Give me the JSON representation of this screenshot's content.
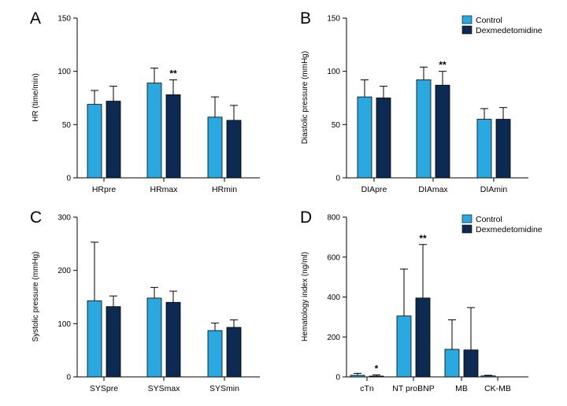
{
  "colors": {
    "control": "#29a9e0",
    "dexmedetomidine": "#0d2b52"
  },
  "legend": [
    "Control",
    "Dexmedetomidine"
  ],
  "chart_data": [
    {
      "type": "bar",
      "panel": "A",
      "ylabel": "HR (time/min)",
      "ylim": [
        0,
        150
      ],
      "yticks": [
        0,
        50,
        100,
        150
      ],
      "categories": [
        "HRpre",
        "HRmax",
        "HRmin"
      ],
      "series": [
        {
          "name": "Control",
          "values": [
            69,
            89,
            57
          ],
          "errors": [
            13,
            14,
            19
          ]
        },
        {
          "name": "Dexmedetomidine",
          "values": [
            72,
            78,
            54
          ],
          "errors": [
            14,
            14,
            14
          ]
        }
      ],
      "annotations": [
        {
          "category": "HRmax",
          "series": "Dexmedetomidine",
          "text": "**"
        }
      ],
      "legend_shown": false
    },
    {
      "type": "bar",
      "panel": "B",
      "ylabel": "Diastolic pressure (mmHg)",
      "ylim": [
        0,
        150
      ],
      "yticks": [
        0,
        50,
        100,
        150
      ],
      "categories": [
        "DIApre",
        "DIAmax",
        "DIAmin"
      ],
      "series": [
        {
          "name": "Control",
          "values": [
            76,
            92,
            55
          ],
          "errors": [
            16,
            12,
            10
          ]
        },
        {
          "name": "Dexmedetomidine",
          "values": [
            75,
            87,
            55
          ],
          "errors": [
            11,
            13,
            11
          ]
        }
      ],
      "annotations": [
        {
          "category": "DIAmax",
          "series": "Dexmedetomidine",
          "text": "**"
        }
      ],
      "legend_shown": true,
      "legend_position": "top-right"
    },
    {
      "type": "bar",
      "panel": "C",
      "ylabel": "Systolic pressure (mmHg)",
      "ylim": [
        0,
        300
      ],
      "yticks": [
        0,
        100,
        200,
        300
      ],
      "categories": [
        "SYSpre",
        "SYSmax",
        "SYSmin"
      ],
      "series": [
        {
          "name": "Control",
          "values": [
            143,
            148,
            87
          ],
          "errors": [
            110,
            20,
            14
          ]
        },
        {
          "name": "Dexmedetomidine",
          "values": [
            132,
            140,
            93
          ],
          "errors": [
            20,
            21,
            14
          ]
        }
      ],
      "annotations": [],
      "legend_shown": false
    },
    {
      "type": "bar",
      "panel": "D",
      "ylabel": "Hematology index (ng/ml)",
      "ylim": [
        0,
        800
      ],
      "yticks": [
        0,
        200,
        400,
        600,
        800
      ],
      "categories": [
        "cTn",
        "NT proBNP",
        "MB",
        "CK-MB"
      ],
      "series": [
        {
          "name": "Control",
          "values": [
            8,
            305,
            138,
            5
          ],
          "errors": [
            10,
            235,
            148,
            3
          ]
        },
        {
          "name": "Dexmedetomidine",
          "values": [
            4,
            395,
            135,
            0
          ],
          "errors": [
            6,
            268,
            212,
            0
          ]
        }
      ],
      "annotations": [
        {
          "category": "cTn",
          "series": "Dexmedetomidine",
          "text": "*"
        },
        {
          "category": "NT proBNP",
          "series": "Dexmedetomidine",
          "text": "**"
        }
      ],
      "legend_shown": true,
      "legend_position": "top-right"
    }
  ]
}
